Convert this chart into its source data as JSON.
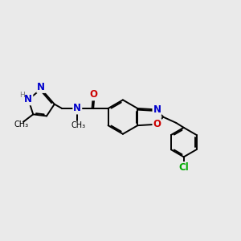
{
  "bg_color": "#eaeaea",
  "bond_color": "#000000",
  "bond_width": 1.4,
  "dbo": 0.055,
  "atom_colors": {
    "N": "#0000cc",
    "O": "#cc0000",
    "Cl": "#00aa00",
    "H": "#777777",
    "C": "#000000"
  },
  "font_size": 8.5,
  "fig_width": 3.0,
  "fig_height": 3.0,
  "dpi": 100
}
